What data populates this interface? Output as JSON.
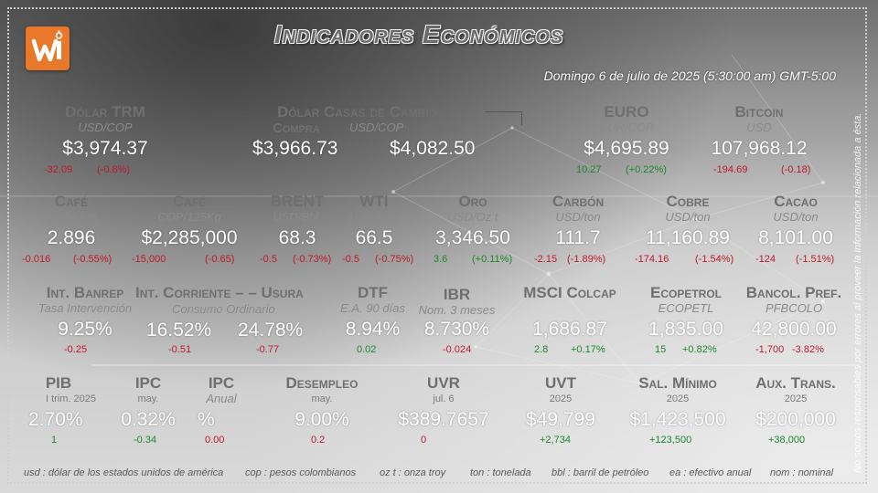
{
  "header": {
    "title": "Indicadores Económicos",
    "date": "Domingo 6 de julio de 2025 (5:30:00 am) GMT-5:00"
  },
  "disclaimer": "No somos responsables por errores al proveer la información relacionada a ésta.",
  "row1": {
    "dolar_trm": {
      "label": "Dólar TRM",
      "unit": "USD/COP",
      "value": "$3,974.37",
      "change": "-32.09",
      "pct": "(-0.8%)"
    },
    "casas": {
      "label": "Dólar Casas de Cambio",
      "compra": "Compra",
      "unit": "USD/COP",
      "venta": "Venta",
      "compra_value": "$3,966.73",
      "venta_value": "$4,082.50"
    },
    "euro": {
      "label": "EURO",
      "unit": "EUR/COP",
      "value": "$4,695.89",
      "change": "10.27",
      "pct": "(+0.22%)"
    },
    "bitcoin": {
      "label": "Bitcoin",
      "unit": "USD",
      "value": "107,968.12",
      "change": "-194.69",
      "pct": "(-0.18)"
    }
  },
  "row2": [
    {
      "label": "Café",
      "unit": "USD/libra",
      "value": "2.896",
      "change": "-0.016",
      "pct": "(-0.55%)",
      "color": "neg"
    },
    {
      "label": "Café",
      "unit": "COP/125Kg",
      "value": "$2,285,000",
      "change": "-15,000",
      "pct": "(-0.65)",
      "color": "neg"
    },
    {
      "label": "BRENT",
      "unit": "USD/Bbl.",
      "value": "68.3",
      "change": "-0.5",
      "pct": "(-0.73%)",
      "color": "neg"
    },
    {
      "label": "WTI",
      "unit": "USD/Bbl.",
      "value": "66.5",
      "change": "-0.5",
      "pct": "(-0.75%)",
      "color": "neg"
    },
    {
      "label": "Oro",
      "unit": "USD/Oz t",
      "value": "3,346.50",
      "change": "3.6",
      "pct": "(+0.11%)",
      "color": "pos"
    },
    {
      "label": "Carbón",
      "unit": "USD/ton",
      "value": "111.7",
      "change": "-2.15",
      "pct": "(-1.89%)",
      "color": "neg"
    },
    {
      "label": "Cobre",
      "unit": "USD/ton",
      "value": "11,160.89",
      "change": "-174.16",
      "pct": "(-1.54%)",
      "color": "neg"
    },
    {
      "label": "Cacao",
      "unit": "USD/ton",
      "value": "8,101.00",
      "change": "-124",
      "pct": "(-1.51%)",
      "color": "neg"
    }
  ],
  "row3": {
    "banrep": {
      "label": "Int. Banrep",
      "sub": "Tasa Intervención",
      "value": "9.25%",
      "change": "-0.25"
    },
    "corriente": {
      "label": "Int. Corriente – – Usura",
      "sub": "Consumo Ordinario",
      "value1": "16.52%",
      "change1": "-0.51",
      "value2": "24.78%",
      "change2": "-0.77"
    },
    "dtf": {
      "label": "DTF",
      "sub": "E.A. 90 días",
      "value": "8.94%",
      "change": "0.02"
    },
    "ibr": {
      "label": "IBR",
      "sub": "Nom. 3 meses",
      "value": "8.730%",
      "change": "-0.024"
    },
    "msci": {
      "label": "MSCI Colcap",
      "value": "1,686.87",
      "change": "2.8",
      "pct": "+0.17%"
    },
    "ecopetrol": {
      "label": "Ecopetrol",
      "sub": "ECOPETL",
      "value": "1,835.00",
      "change": "15",
      "pct": "+0.82%"
    },
    "bancol": {
      "label": "Bancol. Pref.",
      "sub": "PFBCOLO",
      "value": "42,800.00",
      "change": "-1,700",
      "pct": "-3.82%"
    }
  },
  "row4": {
    "pib": {
      "label": "PIB",
      "sub": "I trim. 2025",
      "value": "2.70%",
      "change": "1"
    },
    "ipc": {
      "label": "IPC",
      "sub": "may.",
      "value": "0.32%",
      "change": "-0.34"
    },
    "ipc_anual": {
      "label": "IPC",
      "sub": "Anual",
      "value": "%",
      "change": "0.00"
    },
    "desempleo": {
      "label": "Desempleo",
      "sub": "may.",
      "value": "9.00%",
      "change": "0.2"
    },
    "uvr": {
      "label": "UVR",
      "sub": "jul. 6",
      "value": "$389.7657",
      "change": "0"
    },
    "uvt": {
      "label": "UVT",
      "sub": "2025",
      "value": "$49,799",
      "change": "+2,734"
    },
    "salario": {
      "label": "Sal. Mínimo",
      "sub": "2025",
      "value": "$1,423,500",
      "change": "+123,500"
    },
    "aux": {
      "label": "Aux. Trans.",
      "sub": "2025",
      "value": "$200,000",
      "change": "+38,000"
    }
  },
  "footer": [
    "usd : dólar de los estados unidos de américa",
    "cop : pesos colombianos",
    "oz t : onza troy",
    "ton : tonelada",
    "bbl : barril de petróleo",
    "ea : efectivo anual",
    "nom : nominal"
  ],
  "colors": {
    "negative": "#c0182a",
    "positive": "#1b8a2a",
    "logo": "#e8782a"
  }
}
